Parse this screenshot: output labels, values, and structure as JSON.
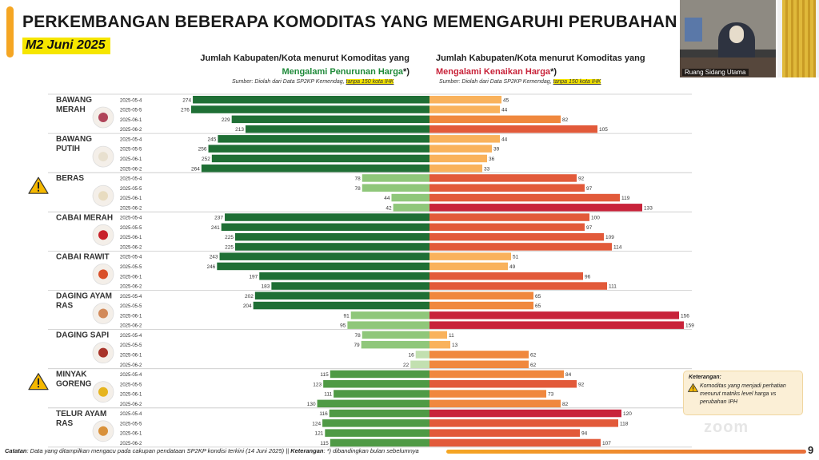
{
  "header": {
    "title": "PERKEMBANGAN BEBERAPA KOMODITAS YANG MEMENGARUHI PERUBAHAN IPH",
    "period": "M2 Juni 2025"
  },
  "left_header": {
    "line1": "Jumlah Kabupaten/Kota menurut Komoditas yang",
    "line2": "Mengalami Penurunan Harga",
    "suffix": "*)",
    "source_prefix": "Sumber: Diolah dari Data SP2KP Kemendag, ",
    "source_hl": "tanpa 150 kota IHK"
  },
  "right_header": {
    "line1": "Jumlah Kabupaten/Kota menurut Komoditas yang",
    "line2": "Mengalami Kenaikan Harga",
    "suffix": "*)",
    "source_prefix": "Sumber: Diolah dari Data SP2KP Kemendag, ",
    "source_hl": "tanpa 150 kota IHK"
  },
  "colors": {
    "green_dark": "#1f6f35",
    "green_mid": "#4f9a45",
    "green_light": "#8fc77a",
    "green_pale": "#c2e0b0",
    "orange_light": "#f9b25c",
    "orange_mid": "#f0883e",
    "red_mid": "#e25a3a",
    "red_dark": "#c8233a",
    "accent": "#f5a623",
    "highlight": "#f6e600"
  },
  "chart_data": {
    "type": "bar",
    "periods": [
      "2025-05-4",
      "2025-05-5",
      "2025-06-1",
      "2025-06-2"
    ],
    "commodities": [
      {
        "name": [
          "BAWANG",
          "MERAH"
        ],
        "warning": false,
        "decrease": [
          274,
          276,
          229,
          213
        ],
        "increase": [
          45,
          44,
          82,
          105
        ]
      },
      {
        "name": [
          "BAWANG",
          "PUTIH"
        ],
        "warning": false,
        "decrease": [
          245,
          256,
          252,
          264
        ],
        "increase": [
          44,
          39,
          36,
          33
        ]
      },
      {
        "name": [
          "BERAS"
        ],
        "warning": true,
        "decrease": [
          78,
          78,
          44,
          42
        ],
        "increase": [
          92,
          97,
          119,
          133
        ]
      },
      {
        "name": [
          "CABAI MERAH"
        ],
        "warning": false,
        "decrease": [
          237,
          241,
          225,
          225
        ],
        "increase": [
          100,
          97,
          109,
          114
        ]
      },
      {
        "name": [
          "CABAI RAWIT"
        ],
        "warning": false,
        "decrease": [
          243,
          246,
          197,
          183
        ],
        "increase": [
          51,
          49,
          96,
          111
        ]
      },
      {
        "name": [
          "DAGING AYAM",
          "RAS"
        ],
        "warning": false,
        "decrease": [
          202,
          204,
          91,
          95
        ],
        "increase": [
          65,
          65,
          156,
          159
        ]
      },
      {
        "name": [
          "DAGING SAPI"
        ],
        "warning": false,
        "decrease": [
          78,
          79,
          16,
          22
        ],
        "increase": [
          11,
          13,
          62,
          62
        ]
      },
      {
        "name": [
          "MINYAK",
          "GORENG"
        ],
        "warning": true,
        "decrease": [
          115,
          123,
          111,
          130
        ],
        "increase": [
          84,
          92,
          73,
          82
        ]
      },
      {
        "name": [
          "TELUR AYAM",
          "RAS"
        ],
        "warning": false,
        "decrease": [
          116,
          124,
          121,
          115
        ],
        "increase": [
          120,
          118,
          94,
          107
        ]
      }
    ]
  },
  "legend": {
    "title": "Keterangan:",
    "text": "Komoditas yang menjadi perhatian menurut matriks level harga vs perubahan IPH"
  },
  "footer": {
    "note_label": "Catatan",
    "note_text": ": Data yang ditampilkan mengacu pada cakupan pendataan SP2KP kondisi terkini (14 Juni 2025) || ",
    "keterangan_label": "Keterangan",
    "keterangan_text": ": *) dibandingkan bulan sebelumnya",
    "page": "9"
  },
  "video": {
    "room_label": "Ruang Sidang Utama"
  },
  "watermark": "zoom"
}
